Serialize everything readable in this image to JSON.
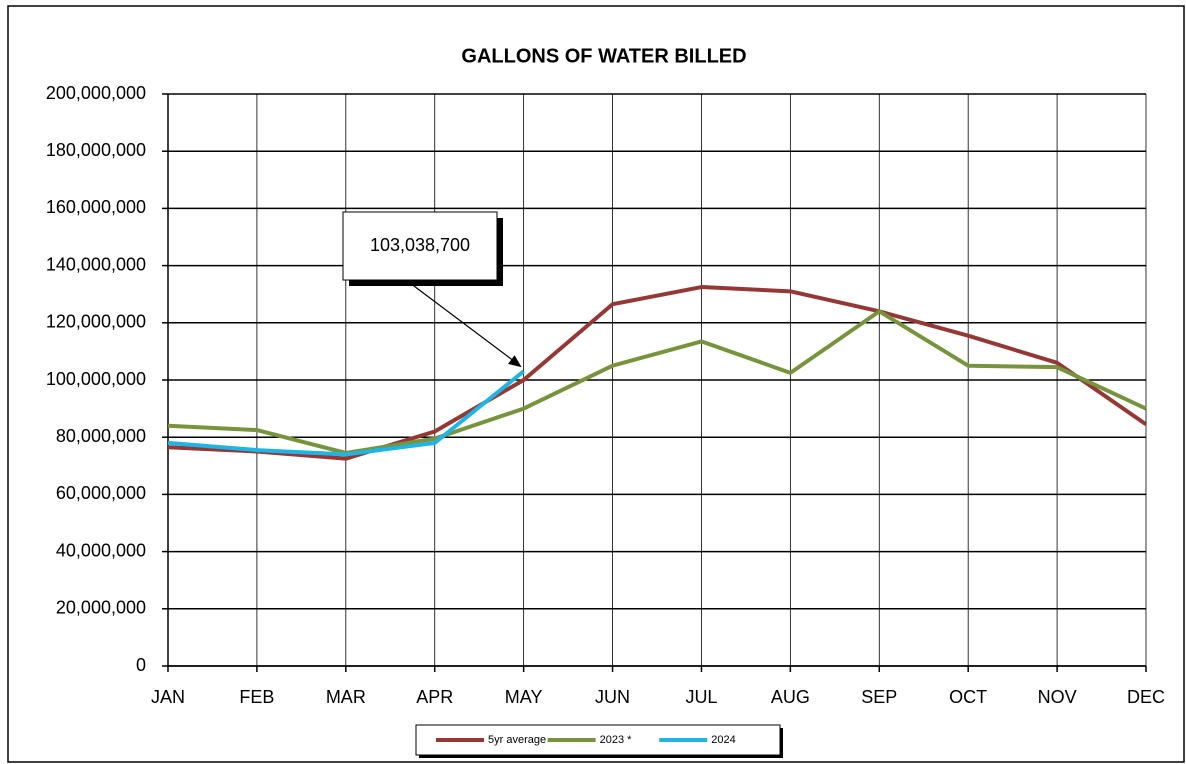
{
  "chart_data": {
    "type": "line",
    "title": "GALLONS OF WATER BILLED",
    "categories": [
      "JAN",
      "FEB",
      "MAR",
      "APR",
      "MAY",
      "JUN",
      "JUL",
      "AUG",
      "SEP",
      "OCT",
      "NOV",
      "DEC"
    ],
    "series": [
      {
        "name": "5yr average",
        "color": "#953735",
        "values": [
          76500000,
          75000000,
          72500000,
          82000000,
          100000000,
          126500000,
          132500000,
          131000000,
          124000000,
          115500000,
          106000000,
          84500000
        ]
      },
      {
        "name": "2023 *",
        "color": "#77933c",
        "values": [
          84000000,
          82500000,
          74500000,
          79500000,
          90000000,
          105000000,
          113500000,
          102500000,
          124000000,
          105000000,
          104500000,
          90000000
        ]
      },
      {
        "name": "2024",
        "color": "#1fb4e6",
        "values": [
          78000000,
          75500000,
          74000000,
          78000000,
          103038700,
          null,
          null,
          null,
          null,
          null,
          null,
          null
        ],
        "value_labels": [
          null,
          null,
          null,
          null,
          "103,038,700",
          null,
          null,
          null,
          null,
          null,
          null,
          null
        ]
      }
    ],
    "ylim": [
      0,
      200000000
    ],
    "yticks": [
      0,
      {
        "value": 20000000,
        "label": "20,000,000"
      },
      {
        "value": 40000000,
        "label": "40,000,000"
      },
      {
        "value": 60000000,
        "label": "60,000,000"
      },
      {
        "value": 80000000,
        "label": "80,000,000"
      },
      {
        "value": 100000000,
        "label": "100,000,000"
      },
      {
        "value": 120000000,
        "label": "120,000,000"
      },
      {
        "value": 140000000,
        "label": "140,000,000"
      },
      {
        "value": 160000000,
        "label": "160,000,000"
      },
      {
        "value": 180000000,
        "label": "180,000,000"
      },
      {
        "value": 200000000,
        "label": "200,000,000"
      }
    ],
    "grid": true,
    "legend": "bottom"
  }
}
